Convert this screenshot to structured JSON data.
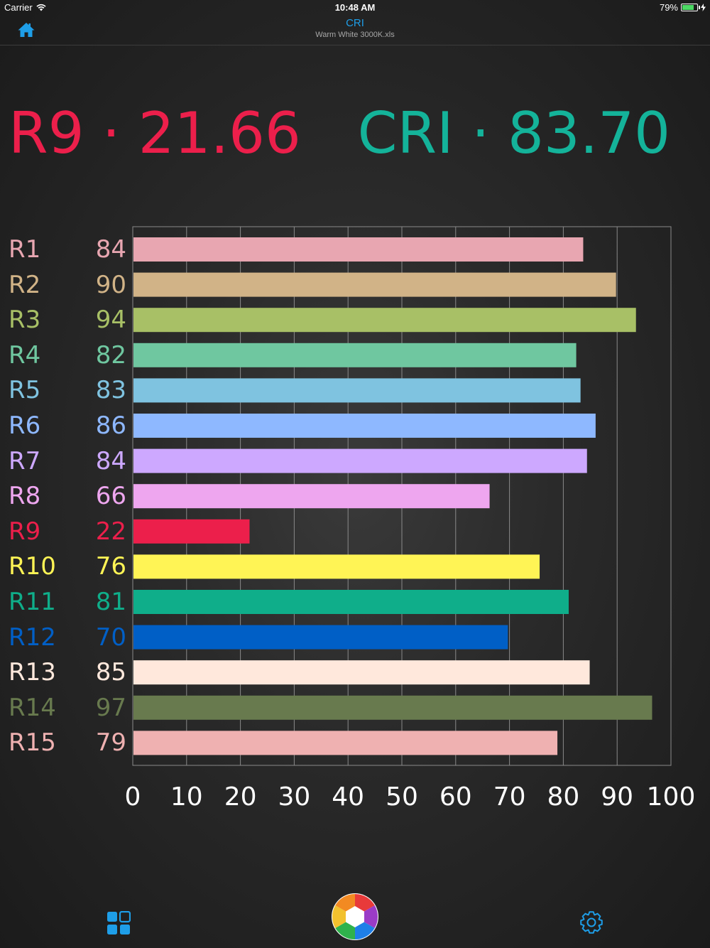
{
  "status_bar": {
    "carrier": "Carrier",
    "time": "10:48 AM",
    "battery": "79%",
    "battery_level": 0.79
  },
  "nav": {
    "title": "CRI",
    "subtitle": "Warm White 3000K.xls"
  },
  "summary": {
    "r9": "R9 ·  21.66",
    "cri": "CRI · 83.70"
  },
  "colors": {
    "accent": "#1e9ee8",
    "r9": "#ec1f4b",
    "cri": "#14b39a"
  },
  "icons": {
    "home": "home-icon",
    "grid": "grid-icon",
    "color_wheel": "color-wheel-icon",
    "settings": "gear-icon"
  },
  "chart_data": {
    "type": "bar",
    "orientation": "horizontal",
    "categories": [
      "R1",
      "R2",
      "R3",
      "R4",
      "R5",
      "R6",
      "R7",
      "R8",
      "R9",
      "R10",
      "R11",
      "R12",
      "R13",
      "R14",
      "R15"
    ],
    "values": [
      84,
      90,
      94,
      82,
      83,
      86,
      84,
      66,
      22,
      76,
      81,
      70,
      85,
      97,
      79
    ],
    "bar_values": [
      83.7,
      89.8,
      93.5,
      82.4,
      83.2,
      86.0,
      84.4,
      66.3,
      21.7,
      75.6,
      81.0,
      69.7,
      84.9,
      96.5,
      78.9
    ],
    "colors": [
      "#e8a6b1",
      "#d1b387",
      "#a8c066",
      "#6fc7a0",
      "#7fc3e0",
      "#8eb8ff",
      "#cda8ff",
      "#eea6ef",
      "#ec1f4b",
      "#fff455",
      "#0fae8a",
      "#005fc6",
      "#ffe8dc",
      "#687a4e",
      "#efb1b1"
    ],
    "label_colors": [
      "#e8a6b1",
      "#d1b387",
      "#a8c066",
      "#6fc7a0",
      "#7fc3e0",
      "#8eb8ff",
      "#cda8ff",
      "#eea6ef",
      "#ec1f4b",
      "#fff455",
      "#0fae8a",
      "#005fc6",
      "#ffe8dc",
      "#687a4e",
      "#efb1b1"
    ],
    "xlim": [
      0,
      100
    ],
    "xticks": [
      "0",
      "10",
      "20",
      "30",
      "40",
      "50",
      "60",
      "70",
      "80",
      "90",
      "100"
    ],
    "grid": true,
    "legend": "none"
  }
}
